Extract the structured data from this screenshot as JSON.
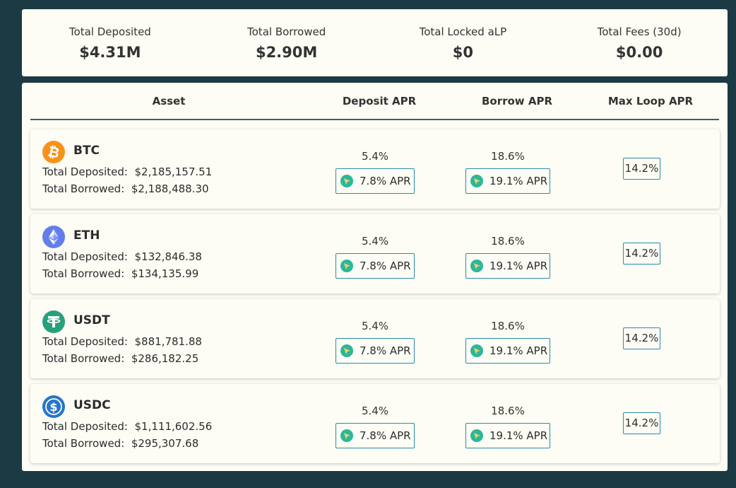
{
  "stats": [
    {
      "label": "Total Deposited",
      "value": "$4.31M"
    },
    {
      "label": "Total Borrowed",
      "value": "$2.90M"
    },
    {
      "label": "Total Locked aLP",
      "value": "$0"
    },
    {
      "label": "Total Fees (30d)",
      "value": "$0.00"
    }
  ],
  "table": {
    "headers": {
      "asset": "Asset",
      "deposit": "Deposit APR",
      "borrow": "Borrow APR",
      "loop": "Max Loop APR"
    },
    "rows": [
      {
        "name": "BTC",
        "icon": "bitcoin-icon",
        "icon_color": "#f7931a",
        "deposited_label": "Total Deposited:",
        "deposited": "$2,185,157.51",
        "borrowed_label": "Total Borrowed:",
        "borrowed": "$2,188,488.30",
        "deposit_apr": "5.4%",
        "deposit_boost": "7.8% APR",
        "borrow_apr": "18.6%",
        "borrow_boost": "19.1% APR",
        "max_loop": "14.2%"
      },
      {
        "name": "ETH",
        "icon": "ethereum-icon",
        "icon_color": "#627eea",
        "deposited_label": "Total Deposited:",
        "deposited": "$132,846.38",
        "borrowed_label": "Total Borrowed:",
        "borrowed": "$134,135.99",
        "deposit_apr": "5.4%",
        "deposit_boost": "7.8% APR",
        "borrow_apr": "18.6%",
        "borrow_boost": "19.1% APR",
        "max_loop": "14.2%"
      },
      {
        "name": "USDT",
        "icon": "tether-icon",
        "icon_color": "#26a17b",
        "deposited_label": "Total Deposited:",
        "deposited": "$881,781.88",
        "borrowed_label": "Total Borrowed:",
        "borrowed": "$286,182.25",
        "deposit_apr": "5.4%",
        "deposit_boost": "7.8% APR",
        "borrow_apr": "18.6%",
        "borrow_boost": "19.1% APR",
        "max_loop": "14.2%"
      },
      {
        "name": "USDC",
        "icon": "usdc-icon",
        "icon_color": "#2775ca",
        "deposited_label": "Total Deposited:",
        "deposited": "$1,111,602.56",
        "borrowed_label": "Total Borrowed:",
        "borrowed": "$295,307.68",
        "deposit_apr": "5.4%",
        "deposit_boost": "7.8% APR",
        "borrow_apr": "18.6%",
        "borrow_boost": "19.1% APR",
        "max_loop": "14.2%"
      }
    ]
  },
  "boost_icon": "reward-token-icon",
  "colors": {
    "background": "#1b3a44",
    "card": "#fdfcf5",
    "accent_border": "#2a8ca6",
    "boost_icon": "#2bb79b"
  }
}
